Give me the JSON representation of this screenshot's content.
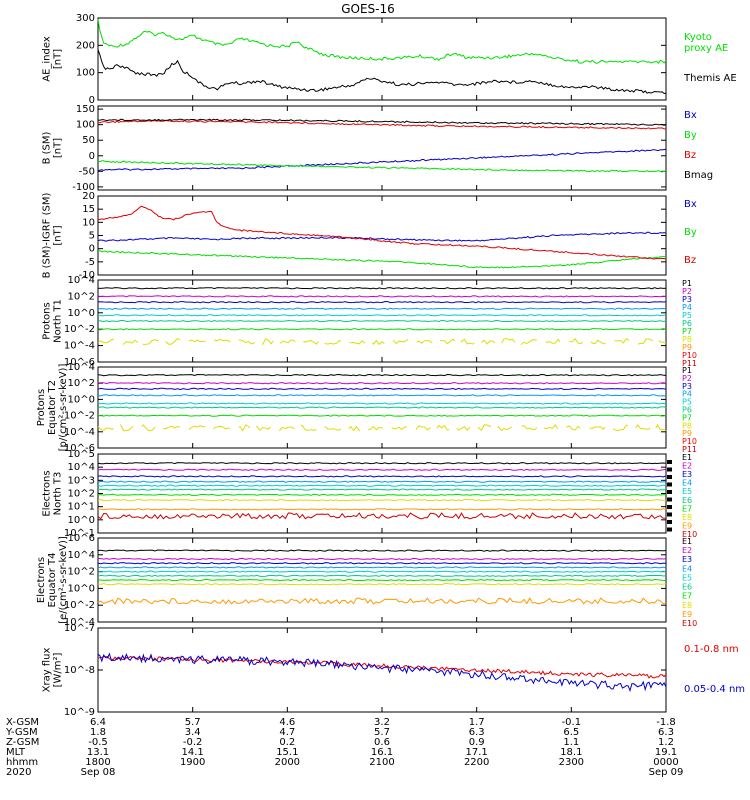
{
  "title": "GOES-16",
  "colors": {
    "black": "#000000",
    "green": "#00e000",
    "blue": "#0000cc",
    "red": "#e00000",
    "ch": [
      "#000000",
      "#cc00cc",
      "#0000cc",
      "#0099ff",
      "#00cccc",
      "#00cc88",
      "#00dd00",
      "#dddd00",
      "#ff9900",
      "#ff0000",
      "#cc0000"
    ]
  },
  "chart_data": [
    {
      "type": "line",
      "ylabel": "AE_index [nT]",
      "ylim": [
        0,
        300
      ],
      "yticks": [
        0,
        100,
        200,
        300
      ],
      "series": [
        {
          "name": "Kyoto proxy AE",
          "color": "#00e000",
          "x": [
            0,
            5,
            15,
            30,
            50,
            60,
            70,
            85,
            100,
            115,
            130,
            140,
            150,
            180,
            200,
            210,
            220,
            240,
            260,
            300,
            340,
            360,
            375,
            390,
            420,
            460,
            480,
            510,
            540,
            600
          ],
          "y": [
            290,
            210,
            195,
            205,
            250,
            240,
            245,
            220,
            235,
            215,
            200,
            205,
            225,
            200,
            195,
            215,
            190,
            165,
            155,
            150,
            160,
            150,
            170,
            155,
            155,
            170,
            155,
            140,
            140,
            140
          ]
        },
        {
          "name": "Themis AE",
          "color": "#000000",
          "x": [
            0,
            6,
            12,
            20,
            30,
            40,
            50,
            60,
            70,
            78,
            84,
            90,
            100,
            110,
            125,
            140,
            150,
            170,
            190,
            210,
            230,
            250,
            270,
            285,
            300,
            320,
            340,
            360,
            380,
            400,
            420,
            440,
            460,
            480,
            500,
            520,
            540,
            560,
            580,
            600
          ],
          "y": [
            180,
            120,
            110,
            130,
            115,
            100,
            95,
            90,
            100,
            130,
            140,
            105,
            85,
            55,
            40,
            65,
            60,
            70,
            50,
            40,
            35,
            45,
            55,
            80,
            70,
            55,
            60,
            65,
            55,
            60,
            70,
            65,
            70,
            55,
            45,
            50,
            40,
            35,
            30,
            25
          ]
        }
      ],
      "legend": [
        "Kyoto proxy AE",
        "Themis AE"
      ]
    },
    {
      "type": "line",
      "ylabel": "B (SM) [nT]",
      "ylim": [
        -110,
        160
      ],
      "yticks": [
        -100,
        -50,
        0,
        50,
        100,
        150
      ],
      "series": [
        {
          "name": "Bx",
          "color": "#0000cc",
          "x": [
            0,
            150,
            300,
            450,
            600
          ],
          "y": [
            -45,
            -40,
            -20,
            0,
            20
          ]
        },
        {
          "name": "By",
          "color": "#00e000",
          "x": [
            0,
            100,
            200,
            300,
            400,
            500,
            600
          ],
          "y": [
            -18,
            -25,
            -32,
            -38,
            -44,
            -48,
            -50
          ]
        },
        {
          "name": "Bz",
          "color": "#e00000",
          "x": [
            0,
            60,
            120,
            180,
            240,
            300,
            360,
            420,
            480,
            540,
            600
          ],
          "y": [
            108,
            112,
            110,
            108,
            104,
            100,
            96,
            94,
            92,
            90,
            88
          ]
        },
        {
          "name": "Bmag",
          "color": "#000000",
          "x": [
            0,
            100,
            200,
            300,
            400,
            500,
            600
          ],
          "y": [
            115,
            116,
            114,
            110,
            106,
            103,
            100
          ]
        }
      ],
      "legend": [
        "Bx",
        "By",
        "Bz",
        "Bmag"
      ]
    },
    {
      "type": "line",
      "ylabel": "B (SM)-IGRF (SM) [nT]",
      "ylim": [
        -10,
        20
      ],
      "yticks": [
        -10,
        -5,
        0,
        5,
        10,
        15,
        20
      ],
      "series": [
        {
          "name": "Bx",
          "color": "#0000cc",
          "x": [
            0,
            40,
            80,
            120,
            160,
            200,
            240,
            280,
            320,
            360,
            400,
            440,
            480,
            520,
            560,
            600
          ],
          "y": [
            3,
            3.5,
            4,
            3.5,
            4,
            4,
            4.2,
            4,
            3.5,
            3.2,
            3,
            4,
            5,
            5.5,
            6,
            6
          ]
        },
        {
          "name": "By",
          "color": "#00e000",
          "x": [
            0,
            40,
            80,
            120,
            160,
            200,
            240,
            280,
            320,
            360,
            400,
            440,
            480,
            520,
            560,
            600
          ],
          "y": [
            -1,
            -1.5,
            -2,
            -2.5,
            -3,
            -3.5,
            -4,
            -4.5,
            -5,
            -6,
            -7,
            -7,
            -6.5,
            -5.5,
            -4,
            -3
          ]
        },
        {
          "name": "Bz",
          "color": "#e00000",
          "x": [
            0,
            20,
            35,
            45,
            55,
            65,
            80,
            95,
            110,
            120,
            125,
            135,
            150,
            170,
            190,
            210,
            240,
            270,
            300,
            330,
            360,
            400,
            440,
            480,
            520,
            560,
            600
          ],
          "y": [
            11,
            12,
            13,
            16,
            15,
            12,
            11,
            13,
            14,
            14,
            10,
            8,
            7,
            6.5,
            6,
            5.5,
            5,
            4,
            3,
            2,
            1.5,
            1,
            0,
            -1,
            -2,
            -3,
            -4
          ]
        }
      ],
      "legend": [
        "Bx",
        "By",
        "Bz"
      ]
    },
    {
      "type": "line",
      "ylabel": "Protons North T1",
      "yscale": "log",
      "ylim": [
        -6,
        4
      ],
      "yticks": [
        "10^4",
        "10^2",
        "10^0",
        "10^-2",
        "10^-4",
        "10^-6"
      ],
      "series_levels_log10": [
        3.0,
        2.0,
        1.3,
        0.5,
        -0.3,
        -1.0,
        -2.0,
        -3.5
      ],
      "legend": [
        "P1",
        "P2",
        "P3",
        "P4",
        "P5",
        "P6",
        "P7",
        "P8",
        "P9",
        "P10",
        "P11"
      ]
    },
    {
      "type": "line",
      "ylabel": "Protons Equator T2 [p/(cm²-s-sr-keV)]",
      "yscale": "log",
      "ylim": [
        -6,
        4
      ],
      "yticks": [
        "10^4",
        "10^2",
        "10^0",
        "10^-2",
        "10^-4",
        "10^-6"
      ],
      "series_levels_log10": [
        3.0,
        2.0,
        1.3,
        0.5,
        -0.5,
        -1.0,
        -2.0,
        -3.5
      ],
      "legend": [
        "P1",
        "P2",
        "P3",
        "P4",
        "P5",
        "P6",
        "P7",
        "P8",
        "P9",
        "P10",
        "P11"
      ]
    },
    {
      "type": "line",
      "ylabel": "Electrons North T3",
      "yscale": "log",
      "ylim": [
        -1,
        5
      ],
      "yticks": [
        "10^5",
        "10^4",
        "10^3",
        "10^2",
        "10^1",
        "10^0",
        "10^-1"
      ],
      "series_levels_log10": [
        4.3,
        3.8,
        3.3,
        2.9,
        2.6,
        2.3,
        1.9,
        1.5,
        0.8,
        0.3
      ],
      "legend": [
        "E1",
        "E2",
        "E3",
        "E4",
        "E5",
        "E6",
        "E7",
        "E8",
        "E9",
        "E10"
      ]
    },
    {
      "type": "line",
      "ylabel": "Electrons Equator T4 [e/(cm²-s-sr-keV)]",
      "yscale": "log",
      "ylim": [
        -4,
        6
      ],
      "yticks": [
        "10^6",
        "10^4",
        "10^2",
        "10^0",
        "10^-2",
        "10^-4"
      ],
      "series_levels_log10": [
        4.5,
        3.5,
        3.0,
        2.5,
        2.0,
        1.5,
        1.0,
        0.5,
        -1.5
      ],
      "legend": [
        "E1",
        "E2",
        "E3",
        "E4",
        "E5",
        "E6",
        "E7",
        "E8",
        "E9",
        "E10"
      ]
    },
    {
      "type": "line",
      "ylabel": "Xray flux [W/m²]",
      "yscale": "log",
      "ylim": [
        -9,
        -7
      ],
      "yticks": [
        "10^-7",
        "10^-8",
        "10^-9"
      ],
      "series": [
        {
          "name": "0.1-0.8 nm",
          "color": "#e00000",
          "x": [
            0,
            100,
            200,
            300,
            400,
            500,
            600
          ],
          "y": [
            -7.7,
            -7.75,
            -7.8,
            -7.9,
            -8.0,
            -8.1,
            -8.15
          ]
        },
        {
          "name": "0.05-0.4 nm",
          "color": "#0000cc",
          "x": [
            0,
            100,
            200,
            300,
            400,
            500,
            560,
            600
          ],
          "y": [
            -7.7,
            -7.75,
            -7.8,
            -7.95,
            -8.1,
            -8.3,
            -8.4,
            -8.35
          ]
        }
      ],
      "legend": [
        "0.1-0.8 nm",
        "0.05-0.4 nm"
      ]
    }
  ],
  "axis_labels": {
    "p0": [
      "AE_index",
      "[nT]"
    ],
    "p1": [
      "B (SM)",
      "[nT]"
    ],
    "p2": [
      "B (SM)-IGRF (SM)",
      "[nT]"
    ],
    "p3": [
      "Protons",
      "North T1"
    ],
    "p4": [
      "Protons",
      "Equator T2",
      "[p/(cm²-s-sr-keV)]"
    ],
    "p5": [
      "Electrons",
      "North T3"
    ],
    "p6": [
      "Electrons",
      "Equator T4",
      "[e/(cm²-s-sr-keV)]"
    ],
    "p7": [
      "Xray flux",
      "[W/m²]"
    ]
  },
  "ephemeris": {
    "row_labels": [
      "X-GSM",
      "Y-GSM",
      "Z-GSM",
      "MLT",
      "hhmm",
      "2020"
    ],
    "columns": [
      [
        "6.4",
        "1.8",
        "-0.5",
        "13.1",
        "1800",
        "Sep 08"
      ],
      [
        "5.7",
        "3.4",
        "-0.2",
        "14.1",
        "1900",
        ""
      ],
      [
        "4.6",
        "4.7",
        "0.2",
        "15.1",
        "2000",
        ""
      ],
      [
        "3.2",
        "5.7",
        "0.6",
        "16.1",
        "2100",
        ""
      ],
      [
        "1.7",
        "6.3",
        "0.9",
        "17.1",
        "2200",
        ""
      ],
      [
        "-0.1",
        "6.5",
        "1.1",
        "18.1",
        "2300",
        ""
      ],
      [
        "-1.8",
        "6.3",
        "1.2",
        "19.1",
        "0000",
        "Sep 09"
      ]
    ]
  }
}
